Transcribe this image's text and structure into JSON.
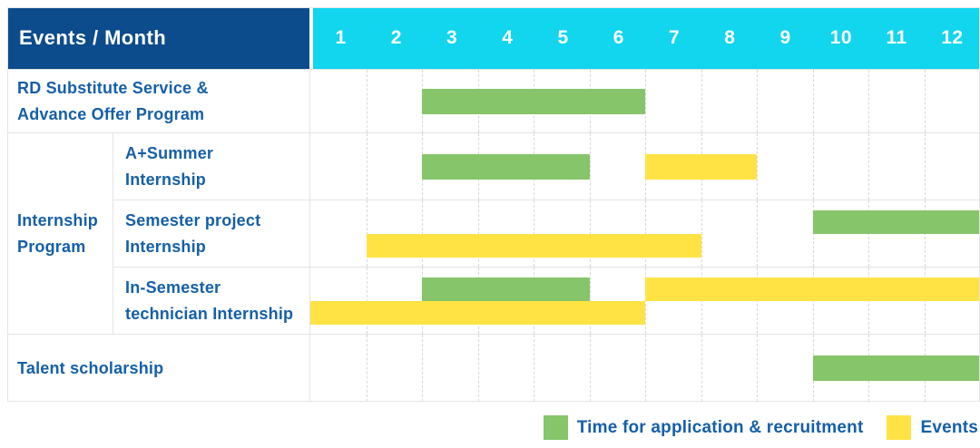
{
  "table": {
    "corner_title": "Events / Month",
    "months": [
      "1",
      "2",
      "3",
      "4",
      "5",
      "6",
      "7",
      "8",
      "9",
      "10",
      "11",
      "12"
    ],
    "group_label": "Internship\nProgram",
    "rows": [
      {
        "label": "RD Substitute Service &\nAdvance Offer Program",
        "group": null,
        "bars": [
          {
            "kind": "recruitment",
            "start": 3,
            "end": 6,
            "line": 1
          }
        ]
      },
      {
        "label": "A+Summer\nInternship",
        "group": "Internship Program",
        "bars": [
          {
            "kind": "recruitment",
            "start": 3,
            "end": 5,
            "line": 1
          },
          {
            "kind": "events",
            "start": 7,
            "end": 8,
            "line": 1
          }
        ]
      },
      {
        "label": "Semester project\nInternship",
        "group": "Internship Program",
        "bars": [
          {
            "kind": "recruitment",
            "start": 10,
            "end": 12,
            "line": 1
          },
          {
            "kind": "events",
            "start": 2,
            "end": 7,
            "line": 2
          }
        ]
      },
      {
        "label": "In-Semester\ntechnician Internship",
        "group": "Internship Program",
        "bars": [
          {
            "kind": "recruitment",
            "start": 3,
            "end": 5,
            "line": 1
          },
          {
            "kind": "events",
            "start": 7,
            "end": 12,
            "line": 1
          },
          {
            "kind": "events",
            "start": 1,
            "end": 6,
            "line": 2
          }
        ]
      },
      {
        "label": "Talent scholarship",
        "group": null,
        "bars": [
          {
            "kind": "recruitment",
            "start": 10,
            "end": 12,
            "line": 1
          }
        ]
      }
    ]
  },
  "legend": {
    "recruitment_label": "Time for application & recruitment",
    "events_label": "Events"
  },
  "colors": {
    "recruitment": "#86c56a",
    "events": "#ffe345",
    "header_navy": "#0d4c8c",
    "header_cyan": "#12d5ee",
    "label_blue": "#155fa8"
  },
  "chart_data": {
    "type": "gantt",
    "title": "Events / Month",
    "x_axis": {
      "label": "Month",
      "ticks": [
        1,
        2,
        3,
        4,
        5,
        6,
        7,
        8,
        9,
        10,
        11,
        12
      ],
      "range": [
        1,
        12
      ]
    },
    "grid": true,
    "legend_position": "bottom-right",
    "legend": [
      {
        "name": "Time for application & recruitment",
        "color": "#86c56a"
      },
      {
        "name": "Events",
        "color": "#ffe345"
      }
    ],
    "rows": [
      {
        "task": "RD Substitute Service & Advance Offer Program",
        "group": null,
        "spans": [
          {
            "series": "Time for application & recruitment",
            "start_month": 3,
            "end_month": 6
          }
        ]
      },
      {
        "task": "A+Summer Internship",
        "group": "Internship Program",
        "spans": [
          {
            "series": "Time for application & recruitment",
            "start_month": 3,
            "end_month": 5
          },
          {
            "series": "Events",
            "start_month": 7,
            "end_month": 8
          }
        ]
      },
      {
        "task": "Semester project Internship",
        "group": "Internship Program",
        "spans": [
          {
            "series": "Time for application & recruitment",
            "start_month": 10,
            "end_month": 12
          },
          {
            "series": "Events",
            "start_month": 2,
            "end_month": 7
          }
        ]
      },
      {
        "task": "In-Semester technician Internship",
        "group": "Internship Program",
        "spans": [
          {
            "series": "Time for application & recruitment",
            "start_month": 3,
            "end_month": 5
          },
          {
            "series": "Events",
            "start_month": 7,
            "end_month": 12
          },
          {
            "series": "Events",
            "start_month": 1,
            "end_month": 6
          }
        ]
      },
      {
        "task": "Talent scholarship",
        "group": null,
        "spans": [
          {
            "series": "Time for application & recruitment",
            "start_month": 10,
            "end_month": 12
          }
        ]
      }
    ]
  }
}
